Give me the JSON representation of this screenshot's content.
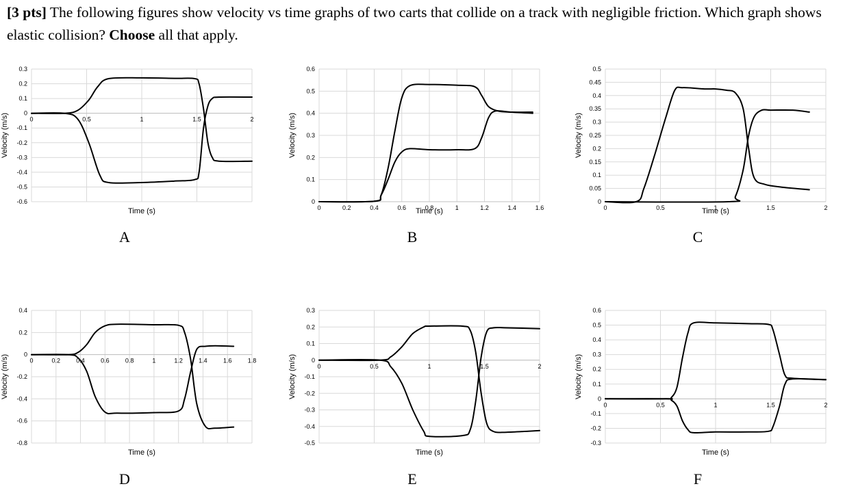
{
  "question": {
    "points": "[3 pts]",
    "text_1": " The following figures show velocity vs time graphs of two carts that collide on a track with negligible friction. Which graph shows elastic collision? ",
    "emphasis": "Choose",
    "text_2": " all that apply."
  },
  "chart_data": [
    {
      "id": "A",
      "label": "A",
      "type": "line",
      "xlabel": "Time (s)",
      "ylabel": "Velocity (m/s)",
      "xlim": [
        0,
        2
      ],
      "ylim": [
        -0.6,
        0.3
      ],
      "xticks": [
        0,
        0.5,
        1,
        1.5,
        2
      ],
      "yticks": [
        -0.6,
        -0.5,
        -0.4,
        -0.3,
        -0.2,
        -0.1,
        0,
        0.1,
        0.2,
        0.3
      ],
      "xtick_labels": [
        "0",
        "0.5",
        "1",
        "1.5",
        "2"
      ],
      "ytick_labels": [
        "-0.6",
        "-0.5",
        "-0.4",
        "-0.3",
        "-0.2",
        "-0.1",
        "0",
        "0.1",
        "0.2",
        "0.3"
      ],
      "series": [
        {
          "x": [
            0,
            0.3,
            0.42,
            0.52,
            0.6,
            0.7,
            1.0,
            1.3,
            1.48,
            1.52,
            1.56,
            1.6,
            1.64,
            1.7,
            2.0
          ],
          "y": [
            0,
            0,
            0.02,
            0.09,
            0.18,
            0.235,
            0.24,
            0.237,
            0.235,
            0.2,
            0.03,
            -0.2,
            -0.3,
            -0.325,
            -0.325
          ]
        },
        {
          "x": [
            0,
            0.3,
            0.42,
            0.52,
            0.62,
            0.7,
            1.0,
            1.3,
            1.48,
            1.52,
            1.56,
            1.6,
            1.64,
            1.7,
            2.0
          ],
          "y": [
            0,
            0,
            -0.04,
            -0.2,
            -0.42,
            -0.47,
            -0.47,
            -0.46,
            -0.45,
            -0.4,
            -0.1,
            0.05,
            0.1,
            0.11,
            0.11
          ]
        }
      ]
    },
    {
      "id": "B",
      "label": "B",
      "type": "line",
      "xlabel": "Time (s)",
      "ylabel": "Velocity (m/s)",
      "xlim": [
        0,
        1.6
      ],
      "ylim": [
        0,
        0.6
      ],
      "xticks": [
        0,
        0.2,
        0.4,
        0.6,
        0.8,
        1,
        1.2,
        1.4,
        1.6
      ],
      "yticks": [
        0,
        0.1,
        0.2,
        0.3,
        0.4,
        0.5,
        0.6
      ],
      "xtick_labels": [
        "0",
        "0.2",
        "0.4",
        "0.6",
        "0.8",
        "1",
        "1.2",
        "1.4",
        "1.6"
      ],
      "ytick_labels": [
        "0",
        "0.1",
        "0.2",
        "0.3",
        "0.4",
        "0.5",
        "0.6"
      ],
      "series": [
        {
          "x": [
            0,
            0.4,
            0.45,
            0.5,
            0.55,
            0.6,
            0.66,
            0.8,
            1.0,
            1.13,
            1.18,
            1.23,
            1.3,
            1.4,
            1.55
          ],
          "y": [
            0,
            0.002,
            0.03,
            0.15,
            0.32,
            0.47,
            0.525,
            0.53,
            0.527,
            0.52,
            0.48,
            0.43,
            0.41,
            0.405,
            0.4
          ]
        },
        {
          "x": [
            0,
            0.4,
            0.45,
            0.5,
            0.55,
            0.6,
            0.66,
            0.8,
            1.0,
            1.13,
            1.18,
            1.23,
            1.28,
            1.4,
            1.55
          ],
          "y": [
            0,
            0.002,
            0.03,
            0.1,
            0.18,
            0.225,
            0.24,
            0.235,
            0.235,
            0.24,
            0.29,
            0.38,
            0.41,
            0.405,
            0.405
          ]
        }
      ]
    },
    {
      "id": "C",
      "label": "C",
      "type": "line",
      "xlabel": "Time (s)",
      "ylabel": "Velocity (m/s)",
      "xlim": [
        0,
        2
      ],
      "ylim": [
        0,
        0.5
      ],
      "xticks": [
        0,
        0.5,
        1,
        1.5,
        2
      ],
      "yticks": [
        0,
        0.05,
        0.1,
        0.15,
        0.2,
        0.25,
        0.3,
        0.35,
        0.4,
        0.45,
        0.5
      ],
      "xtick_labels": [
        "0",
        "0.5",
        "1",
        "1.5",
        "2"
      ],
      "ytick_labels": [
        "0",
        "0.05",
        "0.1",
        "0.15",
        "0.2",
        "0.25",
        "0.3",
        "0.35",
        "0.4",
        "0.45",
        "0.5"
      ],
      "series": [
        {
          "x": [
            0,
            0.28,
            0.35,
            0.45,
            0.55,
            0.63,
            0.7,
            0.9,
            1.0,
            1.1,
            1.18,
            1.25,
            1.3,
            1.35,
            1.45,
            1.6,
            1.85
          ],
          "y": [
            0,
            0,
            0.05,
            0.18,
            0.32,
            0.42,
            0.43,
            0.425,
            0.425,
            0.42,
            0.41,
            0.35,
            0.2,
            0.09,
            0.065,
            0.055,
            0.045
          ]
        },
        {
          "x": [
            0,
            1.12,
            1.18,
            1.25,
            1.3,
            1.35,
            1.42,
            1.5,
            1.7,
            1.85
          ],
          "y": [
            0,
            0,
            0.02,
            0.12,
            0.25,
            0.32,
            0.345,
            0.345,
            0.345,
            0.338
          ]
        }
      ]
    },
    {
      "id": "D",
      "label": "D",
      "type": "line",
      "xlabel": "Time (s)",
      "ylabel": "Velocity (m/s)",
      "xlim": [
        0,
        1.8
      ],
      "ylim": [
        -0.8,
        0.4
      ],
      "xticks": [
        0,
        0.2,
        0.4,
        0.6,
        0.8,
        1,
        1.2,
        1.4,
        1.6,
        1.8
      ],
      "yticks": [
        -0.8,
        -0.6,
        -0.4,
        -0.2,
        0,
        0.2,
        0.4
      ],
      "xtick_labels": [
        "0",
        "0.2",
        "0.4",
        "0.6",
        "0.8",
        "1",
        "1.2",
        "1.4",
        "1.6",
        "1.8"
      ],
      "ytick_labels": [
        "-0.8",
        "-0.6",
        "-0.4",
        "-0.2",
        "0",
        "0.2",
        "0.4"
      ],
      "series": [
        {
          "x": [
            0,
            0.3,
            0.38,
            0.45,
            0.52,
            0.6,
            0.7,
            1.0,
            1.2,
            1.25,
            1.3,
            1.35,
            1.42,
            1.5,
            1.65
          ],
          "y": [
            0,
            0,
            0.02,
            0.09,
            0.2,
            0.26,
            0.275,
            0.27,
            0.265,
            0.2,
            -0.05,
            -0.45,
            -0.65,
            -0.665,
            -0.655
          ]
        },
        {
          "x": [
            0,
            0.3,
            0.38,
            0.45,
            0.52,
            0.6,
            0.7,
            1.0,
            1.2,
            1.25,
            1.3,
            1.35,
            1.42,
            1.5,
            1.65
          ],
          "y": [
            0,
            0,
            -0.03,
            -0.15,
            -0.38,
            -0.52,
            -0.53,
            -0.525,
            -0.51,
            -0.4,
            -0.15,
            0.05,
            0.075,
            0.08,
            0.075
          ]
        }
      ]
    },
    {
      "id": "E",
      "label": "E",
      "type": "line",
      "xlabel": "Time (s)",
      "ylabel": "Velocity (m/s)",
      "xlim": [
        0,
        2
      ],
      "ylim": [
        -0.5,
        0.3
      ],
      "xticks": [
        0,
        0.5,
        1,
        1.5,
        2
      ],
      "yticks": [
        -0.5,
        -0.4,
        -0.3,
        -0.2,
        -0.1,
        0,
        0.1,
        0.2,
        0.3
      ],
      "xtick_labels": [
        "0",
        "0.5",
        "1",
        "1.5",
        "2"
      ],
      "ytick_labels": [
        "-0.5",
        "-0.4",
        "-0.3",
        "-0.2",
        "-0.1",
        "0",
        "0.1",
        "0.2",
        "0.3"
      ],
      "series": [
        {
          "x": [
            0,
            0.55,
            0.65,
            0.75,
            0.85,
            0.95,
            1.0,
            1.3,
            1.37,
            1.42,
            1.47,
            1.52,
            1.58,
            1.7,
            2.0
          ],
          "y": [
            0,
            0,
            0.02,
            0.08,
            0.16,
            0.2,
            0.205,
            0.205,
            0.18,
            0.05,
            -0.2,
            -0.38,
            -0.43,
            -0.435,
            -0.425
          ]
        },
        {
          "x": [
            0,
            0.55,
            0.65,
            0.75,
            0.85,
            0.95,
            1.0,
            1.3,
            1.37,
            1.42,
            1.47,
            1.52,
            1.58,
            1.7,
            2.0
          ],
          "y": [
            0,
            0,
            -0.04,
            -0.14,
            -0.3,
            -0.43,
            -0.46,
            -0.455,
            -0.42,
            -0.25,
            0.02,
            0.17,
            0.195,
            0.195,
            0.19
          ]
        }
      ]
    },
    {
      "id": "F",
      "label": "F",
      "type": "line",
      "xlabel": "Time (s)",
      "ylabel": "Velocity (m/s)",
      "xlim": [
        0,
        2
      ],
      "ylim": [
        -0.3,
        0.6
      ],
      "xticks": [
        0,
        0.5,
        1,
        1.5,
        2
      ],
      "yticks": [
        -0.3,
        -0.2,
        -0.1,
        0,
        0.1,
        0.2,
        0.3,
        0.4,
        0.5,
        0.6
      ],
      "xtick_labels": [
        "0",
        "0.5",
        "1",
        "1.5",
        "2"
      ],
      "ytick_labels": [
        "-0.3",
        "-0.2",
        "-0.1",
        "0",
        "0.1",
        "0.2",
        "0.3",
        "0.4",
        "0.5",
        "0.6"
      ],
      "series": [
        {
          "x": [
            0,
            0.55,
            0.6,
            0.65,
            0.7,
            0.75,
            0.8,
            1.0,
            1.3,
            1.48,
            1.52,
            1.58,
            1.63,
            1.7,
            2.0
          ],
          "y": [
            0,
            0,
            0.01,
            0.08,
            0.28,
            0.45,
            0.515,
            0.515,
            0.51,
            0.505,
            0.47,
            0.3,
            0.16,
            0.14,
            0.13
          ]
        },
        {
          "x": [
            0,
            0.55,
            0.6,
            0.65,
            0.7,
            0.75,
            0.8,
            1.0,
            1.3,
            1.48,
            1.52,
            1.58,
            1.63,
            1.7,
            2.0
          ],
          "y": [
            0,
            0,
            -0.01,
            -0.05,
            -0.15,
            -0.21,
            -0.23,
            -0.225,
            -0.225,
            -0.22,
            -0.19,
            -0.05,
            0.1,
            0.135,
            0.13
          ]
        }
      ]
    }
  ]
}
